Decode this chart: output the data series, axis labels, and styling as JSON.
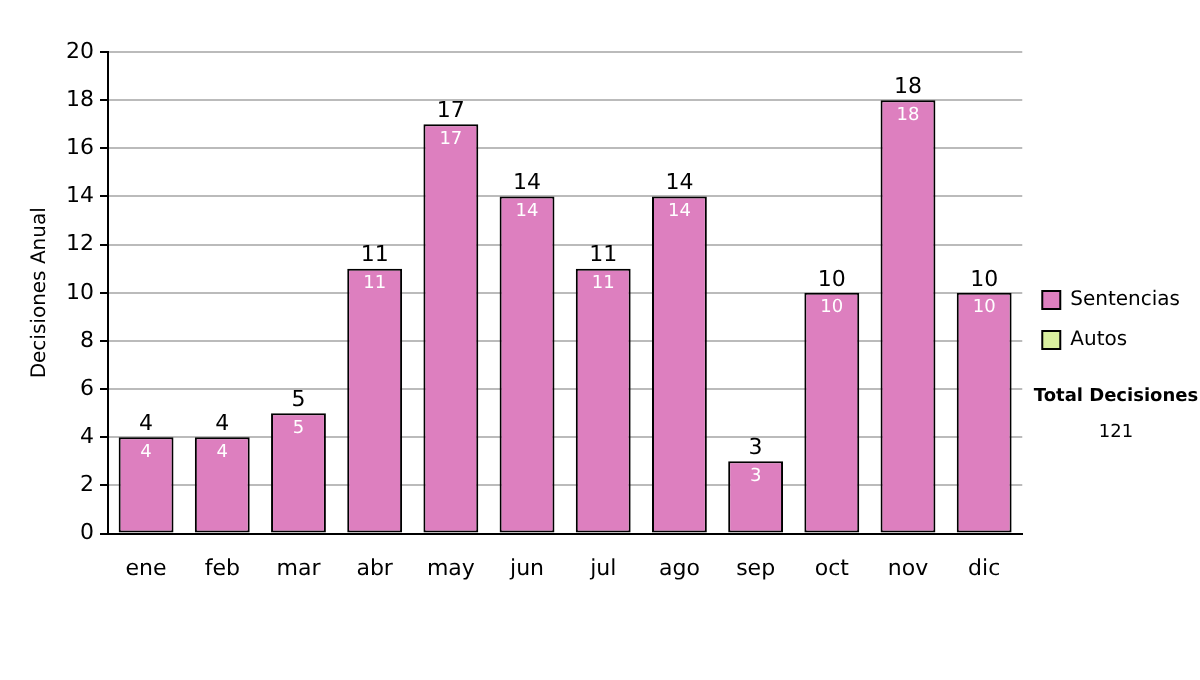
{
  "chart_data": {
    "type": "bar",
    "stacked": true,
    "ylabel": "Decisiones Anual",
    "categories": [
      "ene",
      "feb",
      "mar",
      "abr",
      "may",
      "jun",
      "jul",
      "ago",
      "sep",
      "oct",
      "nov",
      "dic"
    ],
    "series": [
      {
        "name": "Sentencias",
        "color": "#dd7fbf",
        "values": [
          4,
          4,
          5,
          11,
          17,
          14,
          11,
          14,
          3,
          10,
          18,
          10
        ],
        "value_labels": [
          "4",
          "4",
          "5",
          "11",
          "17",
          "14",
          "11",
          "14",
          "3",
          "10",
          "18",
          "10"
        ]
      },
      {
        "name": "Autos",
        "color": "#d9ef9f",
        "values": [
          0,
          0,
          0,
          0,
          0,
          0,
          0,
          0,
          0,
          0,
          0,
          0
        ]
      }
    ],
    "totals": [
      "4",
      "4",
      "5",
      "11",
      "17",
      "14",
      "11",
      "14",
      "3",
      "10",
      "18",
      "10"
    ],
    "ylim": [
      0,
      20
    ],
    "yticks": [
      0,
      2,
      4,
      6,
      8,
      10,
      12,
      14,
      16,
      18,
      20
    ],
    "grid": "y",
    "legend": "right",
    "annotations": [
      "Total Decisiones",
      "121"
    ]
  }
}
